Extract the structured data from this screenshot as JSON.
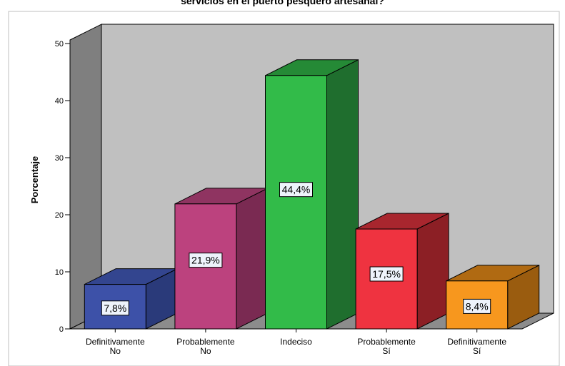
{
  "chart_data": {
    "type": "bar",
    "title": "servicios en el puerto pesquero artesanal?",
    "ylabel": "Porcentaje",
    "xlabel": "",
    "ylim": [
      0,
      50
    ],
    "yticks": [
      0,
      10,
      20,
      30,
      40,
      50
    ],
    "grid": false,
    "style": "3d",
    "categories": [
      [
        "Definitivamente",
        "No"
      ],
      [
        "Probablemente",
        "No"
      ],
      [
        "Indeciso"
      ],
      [
        "Probablemente",
        "Sí"
      ],
      [
        "Definitivamente",
        "Sí"
      ]
    ],
    "values": [
      7.8,
      21.9,
      44.4,
      17.5,
      8.4
    ],
    "data_labels": [
      "7,8%",
      "21,9%",
      "44,4%",
      "17,5%",
      "8,4%"
    ],
    "colors": [
      {
        "front": "#3d51a8",
        "side": "#2a3a7a",
        "top": "#33458f"
      },
      {
        "front": "#bc427e",
        "side": "#7a2a52",
        "top": "#8f3461"
      },
      {
        "front": "#32bb49",
        "side": "#1f6e2e",
        "top": "#258a36"
      },
      {
        "front": "#ef3340",
        "side": "#8c1f25",
        "top": "#a8262e"
      },
      {
        "front": "#f7971e",
        "side": "#9a5c0f",
        "top": "#b06a12"
      }
    ],
    "wall_color": "#c0c0c0",
    "side_wall_color": "#7f7f7f",
    "floor_color": "#8c8c8c"
  }
}
